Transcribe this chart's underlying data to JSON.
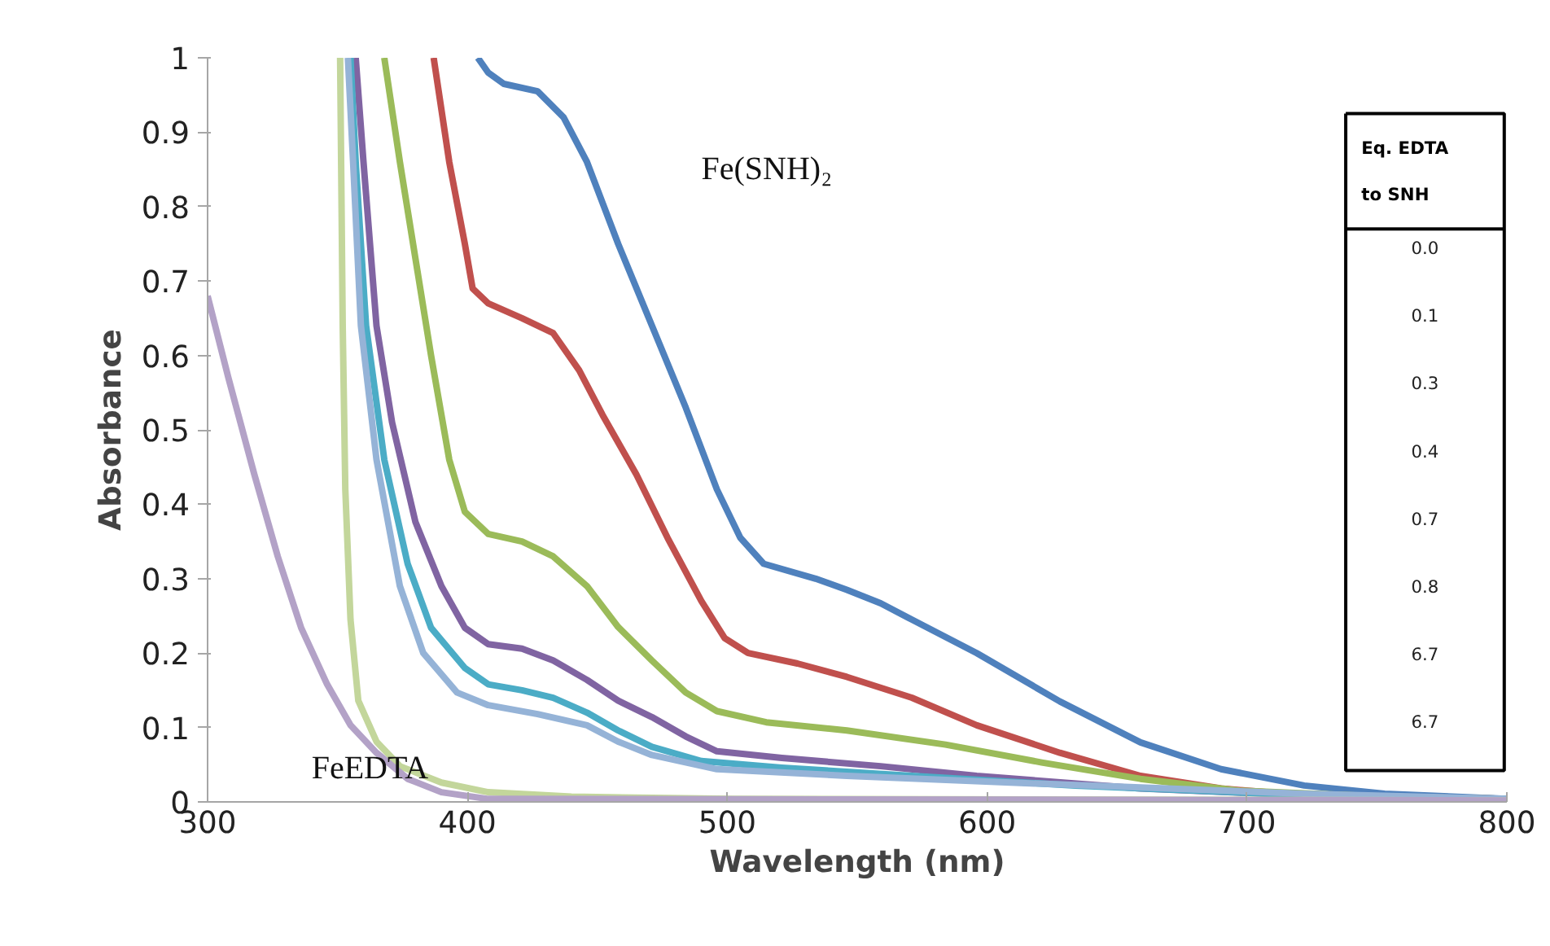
{
  "chart_data": {
    "type": "line",
    "xlabel": "Wavelength (nm)",
    "ylabel": "Absorbance",
    "xlim": [
      300,
      800
    ],
    "xticks": [
      300,
      400,
      500,
      600,
      700,
      800
    ],
    "ylim": [
      0,
      1
    ],
    "yticks": [
      0,
      0.1,
      0.2,
      0.3,
      0.4,
      0.5,
      0.6,
      0.7,
      0.8,
      0.9,
      1
    ],
    "grid": false,
    "marker": "none",
    "line_style": "solid",
    "series": [
      {
        "color": "#4f81bd",
        "x": [
          404,
          408,
          414,
          427,
          437,
          446,
          458,
          471,
          484,
          496,
          505,
          514,
          534,
          546,
          559,
          571,
          596,
          628,
          659,
          690,
          722,
          753,
          800
        ],
        "values": [
          1.0,
          0.98,
          0.965,
          0.955,
          0.92,
          0.86,
          0.75,
          0.64,
          0.53,
          0.42,
          0.355,
          0.32,
          0.3,
          0.285,
          0.267,
          0.245,
          0.2,
          0.135,
          0.08,
          0.044,
          0.022,
          0.011,
          0.004
        ]
      },
      {
        "color": "#c0504d",
        "x": [
          387,
          393,
          399,
          402,
          408,
          421,
          433,
          443,
          452,
          465,
          477,
          490,
          499,
          508,
          527,
          546,
          571,
          596,
          628,
          659,
          690,
          722,
          800
        ],
        "values": [
          1.0,
          0.86,
          0.75,
          0.69,
          0.67,
          0.65,
          0.63,
          0.58,
          0.52,
          0.44,
          0.355,
          0.27,
          0.22,
          0.2,
          0.186,
          0.168,
          0.14,
          0.103,
          0.066,
          0.035,
          0.018,
          0.009,
          0.004
        ]
      },
      {
        "color": "#9bbb59",
        "x": [
          368,
          374,
          380,
          386,
          393,
          399,
          408,
          421,
          433,
          446,
          458,
          471,
          484,
          496,
          515,
          546,
          584,
          621,
          659,
          697,
          753,
          800
        ],
        "values": [
          1.0,
          0.86,
          0.73,
          0.6,
          0.46,
          0.39,
          0.36,
          0.35,
          0.33,
          0.29,
          0.235,
          0.19,
          0.147,
          0.122,
          0.107,
          0.096,
          0.077,
          0.053,
          0.031,
          0.015,
          0.007,
          0.004
        ]
      },
      {
        "color": "#8064a2",
        "x": [
          357,
          360,
          365,
          371,
          380,
          390,
          399,
          408,
          421,
          433,
          446,
          458,
          471,
          484,
          496,
          521,
          559,
          596,
          659,
          722,
          800
        ],
        "values": [
          1.0,
          0.86,
          0.64,
          0.51,
          0.376,
          0.29,
          0.234,
          0.212,
          0.206,
          0.19,
          0.164,
          0.136,
          0.114,
          0.088,
          0.068,
          0.059,
          0.048,
          0.035,
          0.018,
          0.009,
          0.004
        ]
      },
      {
        "color": "#4bacc6",
        "x": [
          355,
          357,
          361,
          368,
          377,
          386,
          399,
          408,
          421,
          433,
          446,
          458,
          471,
          490,
          521,
          571,
          634,
          722,
          800
        ],
        "values": [
          1.0,
          0.86,
          0.64,
          0.46,
          0.32,
          0.234,
          0.18,
          0.158,
          0.15,
          0.14,
          0.12,
          0.096,
          0.074,
          0.055,
          0.046,
          0.035,
          0.022,
          0.009,
          0.004
        ]
      },
      {
        "color": "#95b3d7",
        "x": [
          354,
          356,
          359,
          365,
          374,
          383,
          396,
          408,
          427,
          446,
          458,
          471,
          496,
          546,
          609,
          722,
          800
        ],
        "values": [
          1.0,
          0.86,
          0.64,
          0.46,
          0.29,
          0.2,
          0.147,
          0.13,
          0.118,
          0.103,
          0.081,
          0.063,
          0.044,
          0.035,
          0.026,
          0.011,
          0.004
        ]
      },
      {
        "color": "#c3d69b",
        "x": [
          351,
          352,
          353,
          355,
          358,
          365,
          374,
          390,
          408,
          440,
          502,
          800
        ],
        "values": [
          1.0,
          0.64,
          0.42,
          0.245,
          0.136,
          0.081,
          0.048,
          0.026,
          0.013,
          0.007,
          0.004,
          0.002
        ]
      },
      {
        "color": "#b3a2c7",
        "x": [
          300,
          308,
          318,
          327,
          336,
          346,
          355,
          365,
          377,
          390,
          408,
          800
        ],
        "values": [
          0.68,
          0.57,
          0.44,
          0.33,
          0.234,
          0.158,
          0.103,
          0.066,
          0.031,
          0.013,
          0.004,
          0.002
        ]
      }
    ],
    "annotations": [
      "Fe(SNH)₂",
      "FeEDTA",
      "Eq. EDTA\nto SNH",
      "0.0",
      "0.1",
      "0.3",
      "0.4",
      "0.7",
      "0.8",
      "6.7",
      "6.7"
    ]
  }
}
